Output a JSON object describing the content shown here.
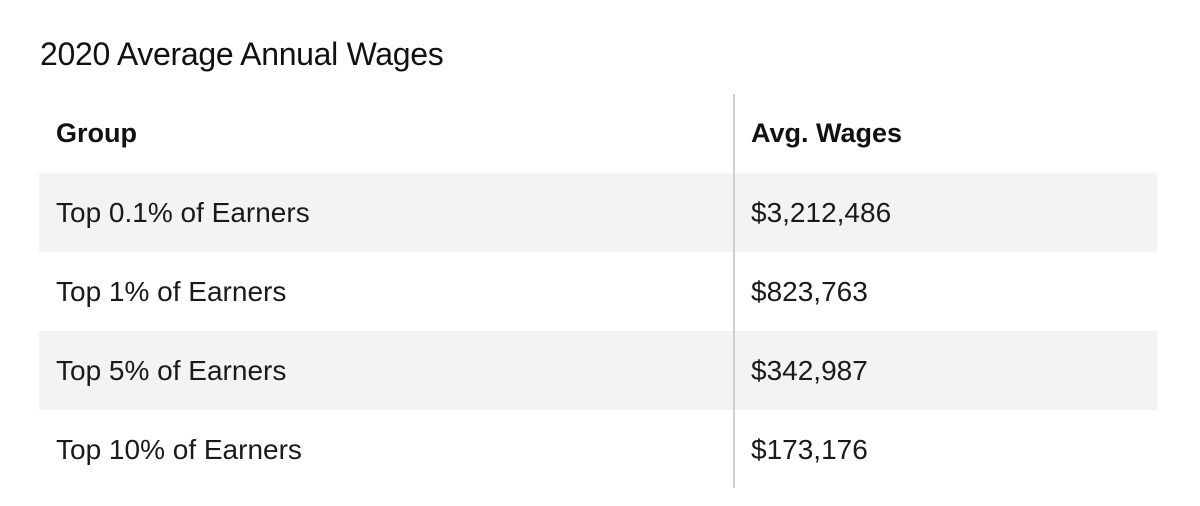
{
  "title": "2020 Average Annual Wages",
  "table": {
    "headers": [
      "Group",
      "Avg. Wages"
    ],
    "rows": [
      {
        "group": "Top 0.1% of Earners",
        "wages": "$3,212,486"
      },
      {
        "group": "Top 1% of Earners",
        "wages": "$823,763"
      },
      {
        "group": "Top 5% of Earners",
        "wages": "$342,987"
      },
      {
        "group": "Top 10% of Earners",
        "wages": "$173,176"
      }
    ]
  },
  "colors": {
    "shaded_row": "#f3f3f3",
    "divider": "#cfcfcf",
    "text": "#1a1a1a"
  }
}
